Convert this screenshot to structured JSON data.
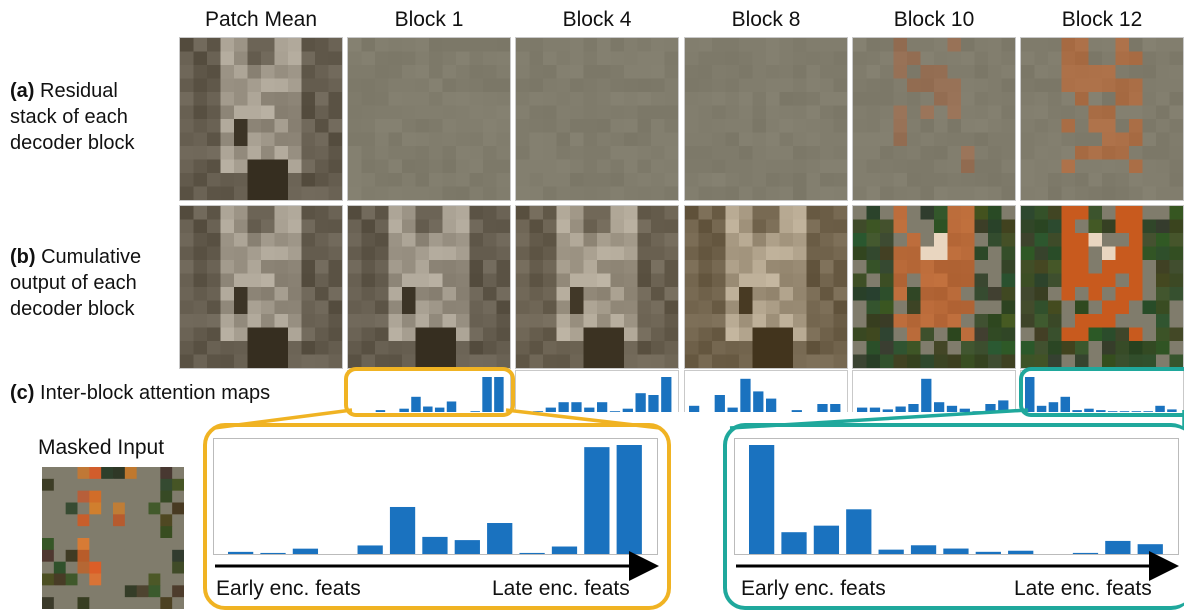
{
  "columns": [
    "Patch Mean",
    "Block 1",
    "Block 4",
    "Block 8",
    "Block 10",
    "Block 12"
  ],
  "rows": {
    "a": {
      "prefix": "(a)",
      "lines": [
        "Residual",
        "stack of each",
        "decoder block"
      ]
    },
    "b": {
      "prefix": "(b)",
      "lines": [
        "Cumulative",
        "output of each",
        "decoder block"
      ]
    },
    "c": {
      "prefix": "(c)",
      "text": "Inter-block attention maps"
    }
  },
  "masked_input": {
    "label": "Masked Input"
  },
  "colors": {
    "bar": "#1a72bf",
    "gold": "#f0b323",
    "teal": "#1fa89c",
    "background_gray": "#807c6c"
  },
  "mini_attention": [
    [
      0.02,
      0.0,
      0.08,
      0.02,
      0.12,
      0.45,
      0.18,
      0.15,
      0.32,
      0.02,
      0.05,
      1.0,
      1.0
    ],
    [
      0.02,
      0.05,
      0.15,
      0.3,
      0.3,
      0.15,
      0.3,
      0.05,
      0.12,
      0.55,
      0.5,
      1.0
    ],
    [
      0.2,
      0.02,
      0.5,
      0.15,
      0.95,
      0.6,
      0.4,
      0.02,
      0.08,
      0.02,
      0.25,
      0.25
    ],
    [
      0.15,
      0.15,
      0.1,
      0.18,
      0.25,
      0.95,
      0.3,
      0.2,
      0.12,
      0.05,
      0.25,
      0.35
    ],
    [
      1.0,
      0.2,
      0.3,
      0.45,
      0.08,
      0.12,
      0.08,
      0.05,
      0.05,
      0.05,
      0.05,
      0.2,
      0.1
    ]
  ],
  "chart_data": [
    {
      "type": "bar",
      "xlabel_left": "Early enc. feats",
      "xlabel_right": "Late enc. feats",
      "values": [
        0.02,
        0.01,
        0.05,
        0.0,
        0.08,
        0.44,
        0.16,
        0.13,
        0.29,
        0.01,
        0.07,
        1.0,
        1.02
      ]
    },
    {
      "type": "bar",
      "xlabel_left": "Early enc. feats",
      "xlabel_right": "Late enc. feats",
      "values": [
        1.0,
        0.2,
        0.26,
        0.41,
        0.04,
        0.08,
        0.05,
        0.02,
        0.03,
        0.0,
        0.01,
        0.12,
        0.09
      ]
    }
  ]
}
